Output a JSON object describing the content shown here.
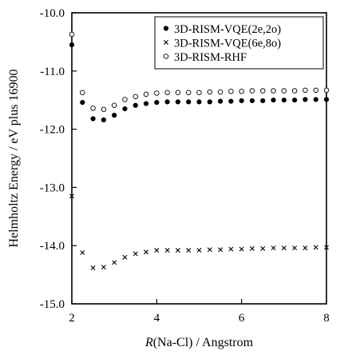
{
  "chart_data": {
    "type": "scatter",
    "title": "",
    "xlabel_italic": "R",
    "xlabel_rest": "(Na-Cl) / Angstrom",
    "ylabel": "Helmholtz Energy / eV plus 16900",
    "xlim": [
      2,
      8
    ],
    "ylim": [
      -15.0,
      -10.0
    ],
    "x_ticks": [
      "2",
      "4",
      "6",
      "8"
    ],
    "y_ticks": [
      "-10.0",
      "-11.0",
      "-12.0",
      "-13.0",
      "-14.0",
      "-15.0"
    ],
    "grid": false,
    "legend_position": "top-right",
    "series": [
      {
        "name": "3D-RISM-VQE(2e,2o)",
        "marker": "filled-circle",
        "x": [
          2.0,
          2.25,
          2.5,
          2.75,
          3.0,
          3.25,
          3.5,
          3.75,
          4.0,
          4.25,
          4.5,
          4.75,
          5.0,
          5.25,
          5.5,
          5.75,
          6.0,
          6.25,
          6.5,
          6.75,
          7.0,
          7.25,
          7.5,
          7.75,
          8.0
        ],
        "y": [
          -10.55,
          -11.54,
          -11.82,
          -11.84,
          -11.76,
          -11.65,
          -11.59,
          -11.56,
          -11.54,
          -11.53,
          -11.53,
          -11.53,
          -11.53,
          -11.53,
          -11.52,
          -11.52,
          -11.51,
          -11.51,
          -11.51,
          -11.5,
          -11.5,
          -11.5,
          -11.49,
          -11.49,
          -11.49
        ]
      },
      {
        "name": "3D-RISM-VQE(6e,8o)",
        "marker": "cross",
        "x": [
          2.0,
          2.25,
          2.5,
          2.75,
          3.0,
          3.25,
          3.5,
          3.75,
          4.0,
          4.25,
          4.5,
          4.75,
          5.0,
          5.25,
          5.5,
          5.75,
          6.0,
          6.25,
          6.5,
          6.75,
          7.0,
          7.25,
          7.5,
          7.75,
          8.0
        ],
        "y": [
          -13.15,
          -14.12,
          -14.38,
          -14.37,
          -14.29,
          -14.2,
          -14.14,
          -14.11,
          -14.08,
          -14.08,
          -14.08,
          -14.08,
          -14.08,
          -14.07,
          -14.07,
          -14.06,
          -14.06,
          -14.05,
          -14.05,
          -14.04,
          -14.04,
          -14.04,
          -14.04,
          -14.03,
          -14.03
        ]
      },
      {
        "name": "3D-RISM-RHF",
        "marker": "open-circle",
        "x": [
          2.0,
          2.25,
          2.5,
          2.75,
          3.0,
          3.25,
          3.5,
          3.75,
          4.0,
          4.25,
          4.5,
          4.75,
          5.0,
          5.25,
          5.5,
          5.75,
          6.0,
          6.25,
          6.5,
          6.75,
          7.0,
          7.25,
          7.5,
          7.75,
          8.0
        ],
        "y": [
          -10.37,
          -11.37,
          -11.64,
          -11.66,
          -11.59,
          -11.49,
          -11.44,
          -11.4,
          -11.38,
          -11.37,
          -11.37,
          -11.37,
          -11.37,
          -11.36,
          -11.36,
          -11.35,
          -11.35,
          -11.34,
          -11.34,
          -11.34,
          -11.34,
          -11.34,
          -11.33,
          -11.33,
          -11.33
        ]
      }
    ]
  }
}
